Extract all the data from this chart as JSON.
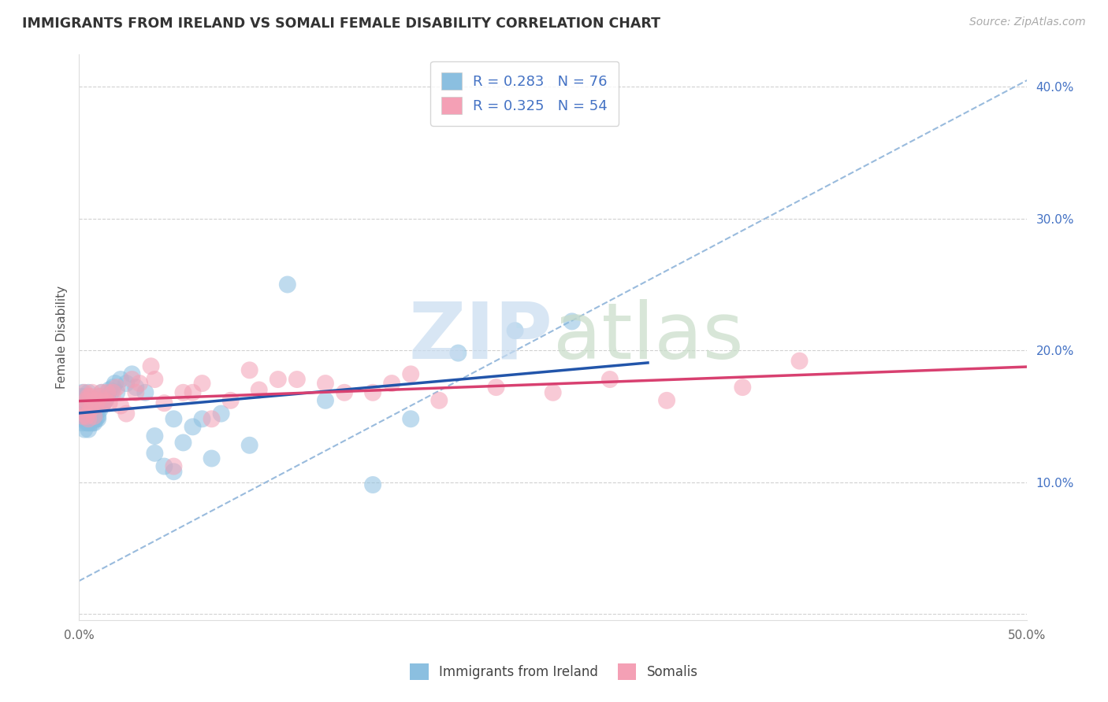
{
  "title": "IMMIGRANTS FROM IRELAND VS SOMALI FEMALE DISABILITY CORRELATION CHART",
  "source": "Source: ZipAtlas.com",
  "ylabel_label": "Female Disability",
  "xlim": [
    0.0,
    0.5
  ],
  "ylim": [
    -0.005,
    0.425
  ],
  "ireland_R": 0.283,
  "ireland_N": 76,
  "somali_R": 0.325,
  "somali_N": 54,
  "ireland_color": "#8BBFE0",
  "somali_color": "#F4A0B5",
  "ireland_line_color": "#2255AA",
  "somali_line_color": "#D84070",
  "dashed_line_color": "#99BBDD",
  "background_color": "#FFFFFF",
  "grid_color": "#CCCCCC",
  "ytick_color": "#4472C4",
  "ireland_x": [
    0.001,
    0.001,
    0.001,
    0.002,
    0.002,
    0.002,
    0.002,
    0.003,
    0.003,
    0.003,
    0.003,
    0.003,
    0.004,
    0.004,
    0.004,
    0.004,
    0.004,
    0.005,
    0.005,
    0.005,
    0.005,
    0.005,
    0.006,
    0.006,
    0.006,
    0.006,
    0.006,
    0.007,
    0.007,
    0.007,
    0.007,
    0.008,
    0.008,
    0.008,
    0.008,
    0.009,
    0.009,
    0.009,
    0.01,
    0.01,
    0.01,
    0.011,
    0.011,
    0.012,
    0.012,
    0.013,
    0.014,
    0.015,
    0.016,
    0.017,
    0.018,
    0.019,
    0.02,
    0.022,
    0.025,
    0.028,
    0.03,
    0.035,
    0.04,
    0.045,
    0.05,
    0.055,
    0.065,
    0.075,
    0.09,
    0.11,
    0.13,
    0.155,
    0.175,
    0.04,
    0.05,
    0.06,
    0.07,
    0.2,
    0.23,
    0.26
  ],
  "ireland_y": [
    0.155,
    0.165,
    0.148,
    0.145,
    0.158,
    0.168,
    0.155,
    0.14,
    0.16,
    0.148,
    0.165,
    0.155,
    0.148,
    0.158,
    0.145,
    0.16,
    0.155,
    0.145,
    0.158,
    0.15,
    0.168,
    0.14,
    0.15,
    0.162,
    0.145,
    0.158,
    0.148,
    0.155,
    0.148,
    0.162,
    0.145,
    0.155,
    0.148,
    0.162,
    0.145,
    0.155,
    0.148,
    0.16,
    0.15,
    0.162,
    0.148,
    0.155,
    0.165,
    0.158,
    0.168,
    0.16,
    0.162,
    0.165,
    0.17,
    0.168,
    0.172,
    0.175,
    0.168,
    0.178,
    0.175,
    0.182,
    0.172,
    0.168,
    0.135,
    0.112,
    0.148,
    0.13,
    0.148,
    0.152,
    0.128,
    0.25,
    0.162,
    0.098,
    0.148,
    0.122,
    0.108,
    0.142,
    0.118,
    0.198,
    0.215,
    0.222
  ],
  "somali_x": [
    0.001,
    0.002,
    0.003,
    0.003,
    0.004,
    0.004,
    0.005,
    0.005,
    0.006,
    0.006,
    0.007,
    0.007,
    0.008,
    0.008,
    0.009,
    0.01,
    0.011,
    0.012,
    0.013,
    0.014,
    0.015,
    0.016,
    0.018,
    0.02,
    0.022,
    0.025,
    0.028,
    0.032,
    0.038,
    0.045,
    0.055,
    0.065,
    0.08,
    0.095,
    0.115,
    0.14,
    0.165,
    0.19,
    0.22,
    0.25,
    0.28,
    0.31,
    0.35,
    0.03,
    0.04,
    0.05,
    0.06,
    0.07,
    0.09,
    0.105,
    0.13,
    0.155,
    0.175,
    0.38
  ],
  "somali_y": [
    0.155,
    0.15,
    0.158,
    0.168,
    0.15,
    0.162,
    0.148,
    0.165,
    0.155,
    0.165,
    0.158,
    0.168,
    0.15,
    0.162,
    0.158,
    0.162,
    0.165,
    0.168,
    0.16,
    0.162,
    0.168,
    0.16,
    0.168,
    0.172,
    0.158,
    0.152,
    0.178,
    0.175,
    0.188,
    0.16,
    0.168,
    0.175,
    0.162,
    0.17,
    0.178,
    0.168,
    0.175,
    0.162,
    0.172,
    0.168,
    0.178,
    0.162,
    0.172,
    0.168,
    0.178,
    0.112,
    0.168,
    0.148,
    0.185,
    0.178,
    0.175,
    0.168,
    0.182,
    0.192
  ]
}
